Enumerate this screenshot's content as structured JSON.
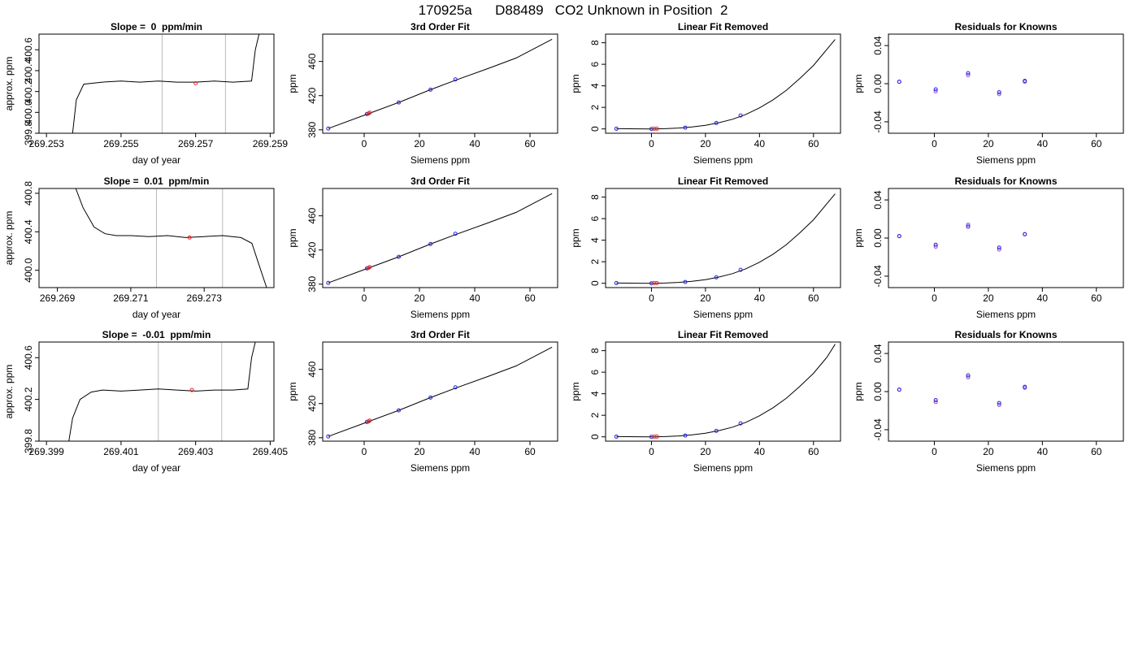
{
  "page_title": "170925a      D88489   CO2 Unknown in Position  2",
  "colors": {
    "known": "#2222dd",
    "unknown": "#ee2222",
    "line": "#000000",
    "vline": "#bbbbbb",
    "ring": "#9944cc"
  },
  "chart_data": [
    {
      "type": "line",
      "title": "Slope =  0  ppm/min",
      "xlabel": "day of year",
      "ylabel": "approx. ppm",
      "xlim": [
        269.2528,
        269.2591
      ],
      "ylim": [
        399.8,
        400.75
      ],
      "xticks": [
        {
          "v": 269.253,
          "l": "269.253"
        },
        {
          "v": 269.255,
          "l": "269.255"
        },
        {
          "v": 269.257,
          "l": "269.257"
        },
        {
          "v": 269.259,
          "l": "269.259"
        }
      ],
      "yticks": [
        {
          "v": 399.8,
          "l": "399.8"
        },
        {
          "v": 400.0,
          "l": "400.0"
        },
        {
          "v": 400.2,
          "l": "400.2"
        },
        {
          "v": 400.4,
          "l": "400.4"
        },
        {
          "v": 400.6,
          "l": "400.6"
        }
      ],
      "vlines": [
        269.2561,
        269.2578
      ],
      "series": {
        "x": [
          269.2537,
          269.2538,
          269.254,
          269.2545,
          269.255,
          269.2555,
          269.256,
          269.2565,
          269.257,
          269.2575,
          269.258,
          269.2585,
          269.2586,
          269.2587
        ],
        "y": [
          399.8,
          400.12,
          400.27,
          400.29,
          400.3,
          400.29,
          400.3,
          400.29,
          400.29,
          400.3,
          400.29,
          400.3,
          400.6,
          400.75
        ]
      },
      "marker": {
        "x": 269.257,
        "y": 400.28
      }
    },
    {
      "type": "scatter",
      "title": "3rd Order Fit",
      "xlabel": "Siemens ppm",
      "ylabel": "ppm",
      "xlim": [
        -15,
        70
      ],
      "ylim": [
        376,
        492
      ],
      "xticks": [
        {
          "v": 0,
          "l": "0"
        },
        {
          "v": 20,
          "l": "20"
        },
        {
          "v": 40,
          "l": "40"
        },
        {
          "v": 60,
          "l": "60"
        }
      ],
      "yticks": [
        {
          "v": 380,
          "l": "380"
        },
        {
          "v": 420,
          "l": "420"
        },
        {
          "v": 460,
          "l": "460"
        }
      ],
      "curve": {
        "x": [
          -13,
          0,
          12.5,
          24,
          33,
          45,
          55,
          68
        ],
        "y": [
          381.5,
          397,
          412,
          427,
          438,
          452,
          464,
          486
        ]
      },
      "known": {
        "x": [
          -13,
          1,
          12.5,
          24,
          33
        ],
        "y": [
          381.5,
          398.5,
          412,
          427,
          439
        ]
      },
      "unknown": {
        "x": [
          1.5,
          2
        ],
        "y": [
          399,
          400
        ]
      }
    },
    {
      "type": "scatter",
      "title": "Linear Fit Removed",
      "xlabel": "Siemens ppm",
      "ylabel": "ppm",
      "xlim": [
        -17,
        70
      ],
      "ylim": [
        -0.4,
        8.8
      ],
      "xticks": [
        {
          "v": 0,
          "l": "0"
        },
        {
          "v": 20,
          "l": "20"
        },
        {
          "v": 40,
          "l": "40"
        },
        {
          "v": 60,
          "l": "60"
        }
      ],
      "yticks": [
        {
          "v": 0,
          "l": "0"
        },
        {
          "v": 2,
          "l": "2"
        },
        {
          "v": 4,
          "l": "4"
        },
        {
          "v": 6,
          "l": "6"
        },
        {
          "v": 8,
          "l": "8"
        }
      ],
      "curve": {
        "x": [
          -13,
          -5,
          0,
          5,
          10,
          15,
          20,
          25,
          30,
          35,
          40,
          45,
          50,
          55,
          60,
          65,
          68
        ],
        "y": [
          0.02,
          0.01,
          0,
          0.02,
          0.08,
          0.18,
          0.34,
          0.58,
          0.9,
          1.35,
          1.95,
          2.7,
          3.6,
          4.7,
          5.9,
          7.4,
          8.3
        ]
      },
      "known": {
        "x": [
          -13,
          0,
          12.5,
          24,
          33
        ],
        "y": [
          0.02,
          0,
          0.12,
          0.55,
          1.25
        ]
      },
      "unknown": {
        "x": [
          1,
          2
        ],
        "y": [
          0.02,
          0.02
        ]
      }
    },
    {
      "type": "scatter",
      "title": "Residuals for Knowns",
      "xlabel": "Siemens ppm",
      "ylabel": "ppm",
      "xlim": [
        -17,
        70
      ],
      "ylim": [
        -0.052,
        0.052
      ],
      "xticks": [
        {
          "v": 0,
          "l": "0"
        },
        {
          "v": 20,
          "l": "20"
        },
        {
          "v": 40,
          "l": "40"
        },
        {
          "v": 60,
          "l": "60"
        }
      ],
      "yticks": [
        {
          "v": -0.04,
          "l": "-0.04"
        },
        {
          "v": 0,
          "l": "0.00"
        },
        {
          "v": 0.04,
          "l": "0.04"
        }
      ],
      "known": {
        "x": [
          -13,
          0.5,
          12.5,
          24,
          33.5
        ],
        "y": [
          0.002,
          -0.006,
          0.011,
          -0.009,
          0.003
        ]
      },
      "ring": {
        "x": [
          -13,
          0.5,
          12.5,
          24,
          33.5
        ],
        "y": [
          0.002,
          -0.008,
          0.009,
          -0.011,
          0.002
        ]
      }
    },
    {
      "type": "line",
      "title": "Slope =  0.01  ppm/min",
      "xlabel": "day of year",
      "ylabel": "approx. ppm",
      "xlim": [
        269.2685,
        269.2749
      ],
      "ylim": [
        399.82,
        400.85
      ],
      "xticks": [
        {
          "v": 269.269,
          "l": "269.269"
        },
        {
          "v": 269.271,
          "l": "269.271"
        },
        {
          "v": 269.273,
          "l": "269.273"
        }
      ],
      "yticks": [
        {
          "v": 400.0,
          "l": "400.0"
        },
        {
          "v": 400.4,
          "l": "400.4"
        },
        {
          "v": 400.8,
          "l": "400.8"
        }
      ],
      "vlines": [
        269.2717,
        269.2735
      ],
      "series": {
        "x": [
          269.2695,
          269.2697,
          269.27,
          269.2703,
          269.2706,
          269.271,
          269.2715,
          269.272,
          269.2725,
          269.273,
          269.2735,
          269.274,
          269.2743,
          269.2745,
          269.2747
        ],
        "y": [
          400.85,
          400.65,
          400.45,
          400.38,
          400.36,
          400.36,
          400.35,
          400.36,
          400.34,
          400.35,
          400.36,
          400.34,
          400.28,
          400.05,
          399.82
        ]
      },
      "marker": {
        "x": 269.2726,
        "y": 400.34
      }
    },
    {
      "type": "scatter",
      "title": "3rd Order Fit",
      "xlabel": "Siemens ppm",
      "ylabel": "ppm",
      "xlim": [
        -15,
        70
      ],
      "ylim": [
        376,
        492
      ],
      "xticks": [
        {
          "v": 0,
          "l": "0"
        },
        {
          "v": 20,
          "l": "20"
        },
        {
          "v": 40,
          "l": "40"
        },
        {
          "v": 60,
          "l": "60"
        }
      ],
      "yticks": [
        {
          "v": 380,
          "l": "380"
        },
        {
          "v": 420,
          "l": "420"
        },
        {
          "v": 460,
          "l": "460"
        }
      ],
      "curve": {
        "x": [
          -13,
          0,
          12.5,
          24,
          33,
          45,
          55,
          68
        ],
        "y": [
          381.5,
          397,
          412,
          427,
          438,
          452,
          464,
          486
        ]
      },
      "known": {
        "x": [
          -13,
          1,
          12.5,
          24,
          33
        ],
        "y": [
          381.5,
          398.5,
          412,
          427,
          439
        ]
      },
      "unknown": {
        "x": [
          1.5,
          2
        ],
        "y": [
          399,
          400
        ]
      }
    },
    {
      "type": "scatter",
      "title": "Linear Fit Removed",
      "xlabel": "Siemens ppm",
      "ylabel": "ppm",
      "xlim": [
        -17,
        70
      ],
      "ylim": [
        -0.4,
        8.8
      ],
      "xticks": [
        {
          "v": 0,
          "l": "0"
        },
        {
          "v": 20,
          "l": "20"
        },
        {
          "v": 40,
          "l": "40"
        },
        {
          "v": 60,
          "l": "60"
        }
      ],
      "yticks": [
        {
          "v": 0,
          "l": "0"
        },
        {
          "v": 2,
          "l": "2"
        },
        {
          "v": 4,
          "l": "4"
        },
        {
          "v": 6,
          "l": "6"
        },
        {
          "v": 8,
          "l": "8"
        }
      ],
      "curve": {
        "x": [
          -13,
          -5,
          0,
          5,
          10,
          15,
          20,
          25,
          30,
          35,
          40,
          45,
          50,
          55,
          60,
          65,
          68
        ],
        "y": [
          0.02,
          0.01,
          0,
          0.02,
          0.08,
          0.18,
          0.34,
          0.58,
          0.9,
          1.35,
          1.95,
          2.7,
          3.6,
          4.7,
          5.9,
          7.4,
          8.3
        ]
      },
      "known": {
        "x": [
          -13,
          0,
          12.5,
          24,
          33
        ],
        "y": [
          0.02,
          0,
          0.12,
          0.55,
          1.25
        ]
      },
      "unknown": {
        "x": [
          1,
          2
        ],
        "y": [
          0.02,
          0.02
        ]
      }
    },
    {
      "type": "scatter",
      "title": "Residuals for Knowns",
      "xlabel": "Siemens ppm",
      "ylabel": "ppm",
      "xlim": [
        -17,
        70
      ],
      "ylim": [
        -0.052,
        0.052
      ],
      "xticks": [
        {
          "v": 0,
          "l": "0"
        },
        {
          "v": 20,
          "l": "20"
        },
        {
          "v": 40,
          "l": "40"
        },
        {
          "v": 60,
          "l": "60"
        }
      ],
      "yticks": [
        {
          "v": -0.04,
          "l": "-0.04"
        },
        {
          "v": 0,
          "l": "0.00"
        },
        {
          "v": 0.04,
          "l": "0.04"
        }
      ],
      "known": {
        "x": [
          -13,
          0.5,
          12.5,
          24,
          33.5
        ],
        "y": [
          0.002,
          -0.007,
          0.012,
          -0.01,
          0.004
        ]
      },
      "ring": {
        "x": [
          -13,
          0.5,
          12.5,
          24,
          33.5
        ],
        "y": [
          0.002,
          -0.009,
          0.014,
          -0.012,
          0.004
        ]
      }
    },
    {
      "type": "line",
      "title": "Slope =  -0.01  ppm/min",
      "xlabel": "day of year",
      "ylabel": "approx. ppm",
      "xlim": [
        269.3988,
        269.4051
      ],
      "ylim": [
        399.8,
        400.75
      ],
      "xticks": [
        {
          "v": 269.399,
          "l": "269.399"
        },
        {
          "v": 269.401,
          "l": "269.401"
        },
        {
          "v": 269.403,
          "l": "269.403"
        },
        {
          "v": 269.405,
          "l": "269.405"
        }
      ],
      "yticks": [
        {
          "v": 399.8,
          "l": "399.8"
        },
        {
          "v": 400.2,
          "l": "400.2"
        },
        {
          "v": 400.6,
          "l": "400.6"
        }
      ],
      "vlines": [
        269.402,
        269.4037
      ],
      "series": {
        "x": [
          269.3996,
          269.3997,
          269.3999,
          269.4002,
          269.4005,
          269.401,
          269.4015,
          269.402,
          269.4025,
          269.403,
          269.4035,
          269.404,
          269.4044,
          269.4045,
          269.4046
        ],
        "y": [
          399.8,
          400.02,
          400.2,
          400.27,
          400.29,
          400.28,
          400.29,
          400.3,
          400.29,
          400.28,
          400.29,
          400.29,
          400.3,
          400.6,
          400.75
        ]
      },
      "marker": {
        "x": 269.4029,
        "y": 400.29
      }
    },
    {
      "type": "scatter",
      "title": "3rd Order Fit",
      "xlabel": "Siemens ppm",
      "ylabel": "ppm",
      "xlim": [
        -15,
        70
      ],
      "ylim": [
        376,
        492
      ],
      "xticks": [
        {
          "v": 0,
          "l": "0"
        },
        {
          "v": 20,
          "l": "20"
        },
        {
          "v": 40,
          "l": "40"
        },
        {
          "v": 60,
          "l": "60"
        }
      ],
      "yticks": [
        {
          "v": 380,
          "l": "380"
        },
        {
          "v": 420,
          "l": "420"
        },
        {
          "v": 460,
          "l": "460"
        }
      ],
      "curve": {
        "x": [
          -13,
          0,
          12.5,
          24,
          33,
          45,
          55,
          68
        ],
        "y": [
          381.5,
          397,
          412,
          427,
          438,
          452,
          464,
          486
        ]
      },
      "known": {
        "x": [
          -13,
          1,
          12.5,
          24,
          33
        ],
        "y": [
          381.5,
          398.5,
          412,
          427,
          439
        ]
      },
      "unknown": {
        "x": [
          1.5,
          2
        ],
        "y": [
          399,
          400
        ]
      }
    },
    {
      "type": "scatter",
      "title": "Linear Fit Removed",
      "xlabel": "Siemens ppm",
      "ylabel": "ppm",
      "xlim": [
        -17,
        70
      ],
      "ylim": [
        -0.4,
        8.8
      ],
      "xticks": [
        {
          "v": 0,
          "l": "0"
        },
        {
          "v": 20,
          "l": "20"
        },
        {
          "v": 40,
          "l": "40"
        },
        {
          "v": 60,
          "l": "60"
        }
      ],
      "yticks": [
        {
          "v": 0,
          "l": "0"
        },
        {
          "v": 2,
          "l": "2"
        },
        {
          "v": 4,
          "l": "4"
        },
        {
          "v": 6,
          "l": "6"
        },
        {
          "v": 8,
          "l": "8"
        }
      ],
      "curve": {
        "x": [
          -13,
          -5,
          0,
          5,
          10,
          15,
          20,
          25,
          30,
          35,
          40,
          45,
          50,
          55,
          60,
          65,
          68
        ],
        "y": [
          0.02,
          0.01,
          0,
          0.02,
          0.08,
          0.18,
          0.34,
          0.58,
          0.9,
          1.35,
          1.95,
          2.7,
          3.6,
          4.7,
          5.9,
          7.4,
          8.6
        ]
      },
      "known": {
        "x": [
          -13,
          0,
          12.5,
          24,
          33
        ],
        "y": [
          0.02,
          0,
          0.12,
          0.55,
          1.25
        ]
      },
      "unknown": {
        "x": [
          1,
          2
        ],
        "y": [
          0.02,
          0.02
        ]
      }
    },
    {
      "type": "scatter",
      "title": "Residuals for Knowns",
      "xlabel": "Siemens ppm",
      "ylabel": "ppm",
      "xlim": [
        -17,
        70
      ],
      "ylim": [
        -0.052,
        0.052
      ],
      "xticks": [
        {
          "v": 0,
          "l": "0"
        },
        {
          "v": 20,
          "l": "20"
        },
        {
          "v": 40,
          "l": "40"
        },
        {
          "v": 60,
          "l": "60"
        }
      ],
      "yticks": [
        {
          "v": -0.04,
          "l": "-0.04"
        },
        {
          "v": 0,
          "l": "0.00"
        },
        {
          "v": 0.04,
          "l": "0.04"
        }
      ],
      "known": {
        "x": [
          -13,
          0.5,
          12.5,
          24,
          33.5
        ],
        "y": [
          0.002,
          -0.009,
          0.017,
          -0.012,
          0.005
        ]
      },
      "ring": {
        "x": [
          -13,
          0.5,
          12.5,
          24,
          33.5
        ],
        "y": [
          0.002,
          -0.011,
          0.015,
          -0.014,
          0.004
        ]
      }
    }
  ]
}
